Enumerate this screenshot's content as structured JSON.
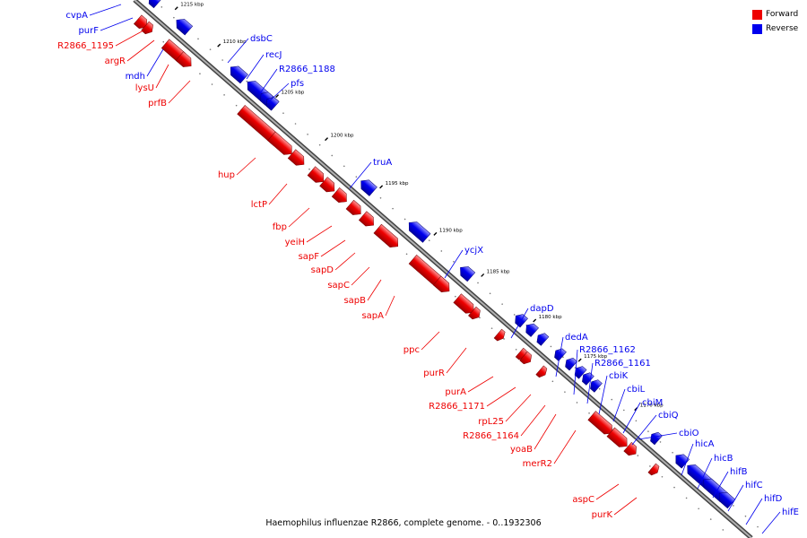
{
  "legend": {
    "forward_label": "Forward",
    "reverse_label": "Reverse"
  },
  "colors": {
    "forward": "#ee0000",
    "reverse": "#0000ee"
  },
  "caption": "Haemophilus influenzae R2866, complete genome. - 0..1932306",
  "tick_labels": [
    "1215 kbp",
    "1210 kbp",
    "1205 kbp",
    "1200 kbp",
    "1195 kbp",
    "1190 kbp",
    "1185 kbp",
    "1180 kbp",
    "1175 kbp",
    "1170 kbp"
  ],
  "forward_genes": [
    "R2866_1195",
    "argR",
    "lysU",
    "prfB",
    "hup",
    "lctP",
    "fbp",
    "yeiH",
    "sapF",
    "sapD",
    "sapC",
    "sapB",
    "sapA",
    "ppc",
    "purR",
    "purA",
    "R2866_1171",
    "rpL25",
    "R2866_1164",
    "yoaB",
    "merR2",
    "aspC",
    "purK"
  ],
  "reverse_genes": [
    "cvpA",
    "purF",
    "mdh",
    "dsbC",
    "recJ",
    "R2866_1188",
    "pfs",
    "truA",
    "ycjX",
    "dapD",
    "dedA",
    "R2866_1162",
    "R2866_1161",
    "cbiK",
    "cbiL",
    "cbiM",
    "cbiQ",
    "cbiO",
    "hicA",
    "hicB",
    "hifB",
    "hifC",
    "hifD",
    "hifE"
  ]
}
